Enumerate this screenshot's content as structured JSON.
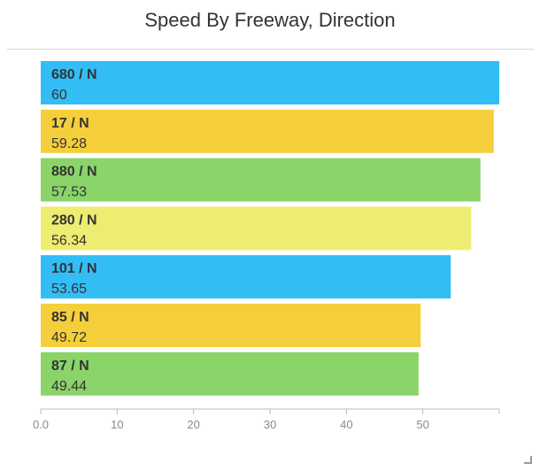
{
  "chart_data": {
    "type": "bar",
    "orientation": "horizontal",
    "title": "Speed By Freeway, Direction",
    "xlabel": "",
    "ylabel": "",
    "categories": [
      "680 / N",
      "17 / N",
      "880 / N",
      "280 / N",
      "101 / N",
      "85 / N",
      "87 / N"
    ],
    "values": [
      60,
      59.28,
      57.53,
      56.34,
      53.65,
      49.72,
      49.44
    ],
    "value_labels": [
      "60",
      "59.28",
      "57.53",
      "56.34",
      "53.65",
      "49.72",
      "49.44"
    ],
    "colors": [
      "#33bdf5",
      "#f5cf3b",
      "#8ad46a",
      "#eded72",
      "#33bdf5",
      "#f5cf3b",
      "#8ad46a"
    ],
    "xlim": [
      0,
      60
    ],
    "xticks": [
      0,
      10,
      20,
      30,
      40,
      50
    ],
    "xtick_labels": [
      "0.0",
      "10",
      "20",
      "30",
      "40",
      "50"
    ],
    "grid": false,
    "legend": "none"
  }
}
